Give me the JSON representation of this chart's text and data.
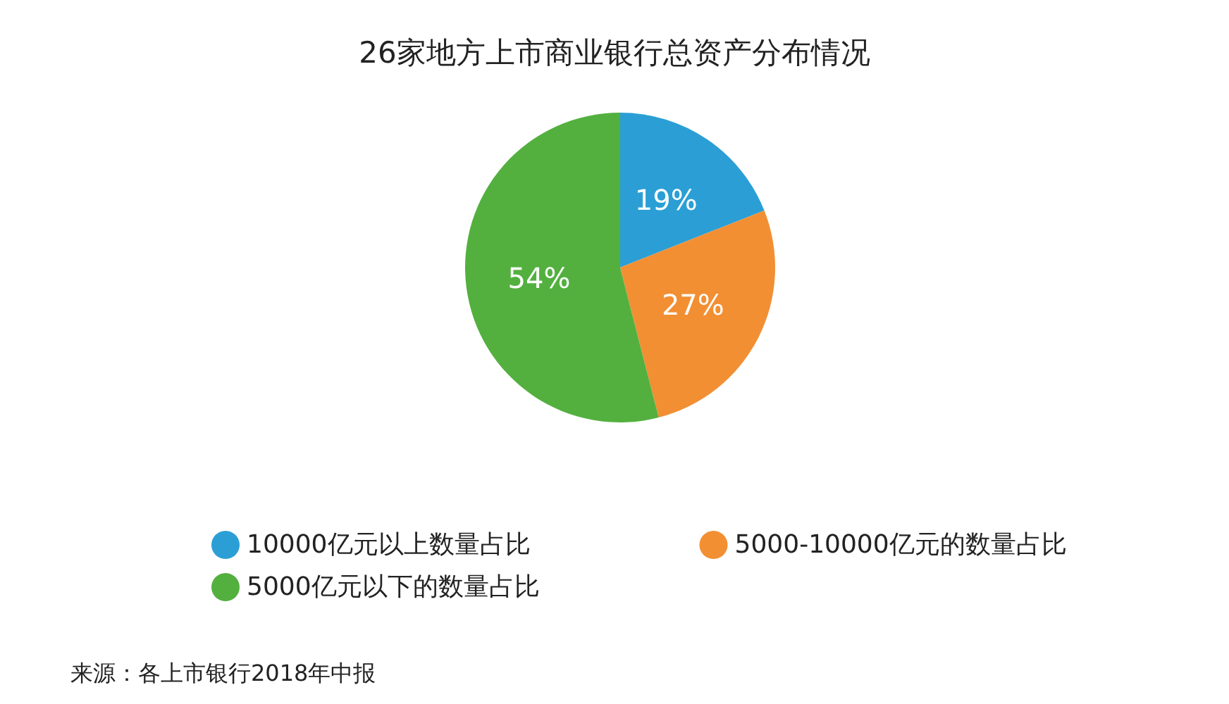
{
  "chart_data": {
    "type": "pie",
    "title": "26家地方上市商业银行总资产分布情况",
    "categories": [
      "10000亿元以上数量占比",
      "5000-10000亿元的数量占比",
      "5000亿元以下的数量占比"
    ],
    "values": [
      19,
      27,
      54
    ],
    "colors": [
      "#2b9fd5",
      "#f28f33",
      "#53b03f"
    ],
    "value_labels": [
      "19%",
      "27%",
      "54%"
    ],
    "legend": "bottom",
    "annotations": [
      "来源：各上市银行2018年中报"
    ]
  }
}
